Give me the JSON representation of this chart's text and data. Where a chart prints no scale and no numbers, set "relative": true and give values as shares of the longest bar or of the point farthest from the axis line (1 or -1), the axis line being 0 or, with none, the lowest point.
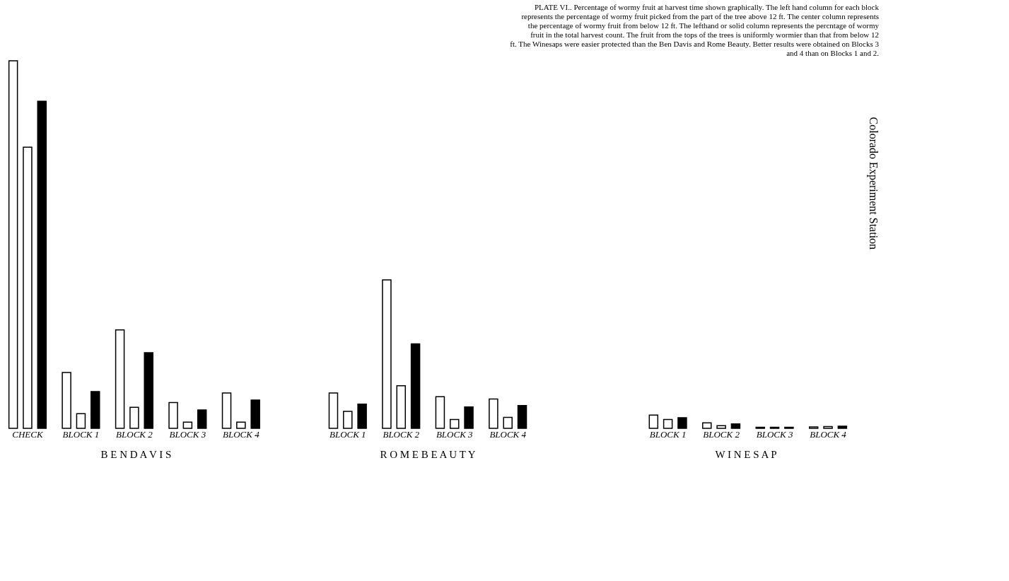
{
  "chart_data": {
    "type": "bar",
    "relative": true,
    "grid": false,
    "legend": false,
    "title": "PLATE VI.. Percentage of wormy fruit at harvest time shown graphically. The left hand column for each block represents the percentage of wormy fruit picked from the part of the tree above 12 ft. The center column represents the percentage of wormy fruit from below 12 ft. The lefthand or solid column represents the percntage of wormy fruit in the total harvest count. The fruit from the tops of the trees is uniformly wormier than that from below 12 ft. The Winesaps were easier protected than the Ben Davis and Rome Beauty. Better results were obtained on Blocks 3 and 4 than on Blocks 1 and 2.",
    "categories": [
      "CHECK",
      "BLOCK 1",
      "BLOCK 2",
      "BLOCK 3",
      "BLOCK 4",
      null,
      "BLOCK 1",
      "BLOCK 2",
      "BLOCK 3",
      "BLOCK 4",
      null,
      null,
      "BLOCK 1",
      "BLOCK 2",
      "BLOCK 3",
      "BLOCK 4"
    ],
    "series": [
      {
        "color": "#ffffff",
        "values": [
          1,
          0.152,
          0.268,
          0.07,
          0.096,
          null,
          0.096,
          0.404,
          0.086,
          0.08,
          null,
          null,
          0.036,
          0.015,
          0.003,
          0.004
        ]
      },
      {
        "color": "#ffffff",
        "values": [
          0.765,
          0.04,
          0.057,
          0.017,
          0.017,
          null,
          0.046,
          0.116,
          0.024,
          0.03,
          null,
          null,
          0.024,
          0.007,
          0.003,
          0.005
        ]
      },
      {
        "color": "#000000",
        "values": [
          0.89,
          0.1,
          0.206,
          0.05,
          0.077,
          null,
          0.066,
          0.23,
          0.058,
          0.062,
          null,
          null,
          0.029,
          0.012,
          0.003,
          0.006
        ]
      }
    ],
    "annotations": [
      "B E N   D A V I S",
      "R O M E   B E A U T Y",
      "W I N E S A P",
      "Colorado Experiment Station"
    ]
  }
}
